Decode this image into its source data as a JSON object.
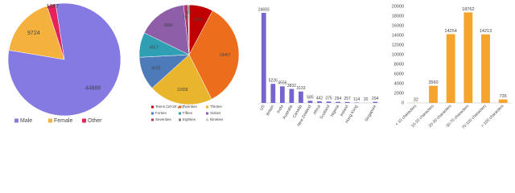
{
  "chart_data": [
    {
      "type": "pie",
      "categories": [
        "Male",
        "Female",
        "Other"
      ],
      "values": [
        44888,
        9724,
        1397
      ],
      "colors": [
        "#8579e2",
        "#f5b13d",
        "#e2245b"
      ],
      "legend": "bottom"
    },
    {
      "type": "pie",
      "categories": [
        "Teens (10-20 yrs)",
        "Twenties",
        "Thirties",
        "Forties",
        "Fifties",
        "Sixties",
        "Seventies",
        "Eighties",
        "Nineties"
      ],
      "values": [
        4364,
        19467,
        11658,
        6070,
        4517,
        8966,
        793,
        194,
        8
      ],
      "colors": [
        "#c00000",
        "#ec6d1c",
        "#e8b52c",
        "#4d7ab8",
        "#2f9fb3",
        "#8f5ea8",
        "#b0356a",
        "#7d7d7d",
        "#c9c9c9"
      ],
      "legend": "bottom"
    },
    {
      "type": "bar",
      "categories": [
        "US",
        "Britain",
        "India",
        "Australia",
        "Canada",
        "New Zealand",
        "Africa",
        "Scotland",
        "Nigeria",
        "Ireland",
        "Hong Kong",
        null,
        "Singapore"
      ],
      "values": [
        24693,
        5226,
        4556,
        3832,
        3133,
        585,
        442,
        375,
        294,
        257,
        114,
        20,
        294
      ],
      "color": "#7565cf"
    },
    {
      "type": "bar",
      "categories": [
        "< 10 characters",
        "10-20 characters",
        "20-30 characters",
        "30-70 characters",
        "70-100 characters",
        "> 100 characters"
      ],
      "values": [
        32,
        3560,
        14254,
        18762,
        14213,
        735
      ],
      "color": "#f5a52e",
      "ylim": [
        0,
        20000
      ],
      "yticks": [
        0,
        2000,
        4000,
        6000,
        8000,
        10000,
        12000,
        14000,
        16000,
        18000,
        20000
      ],
      "grid": false
    }
  ]
}
